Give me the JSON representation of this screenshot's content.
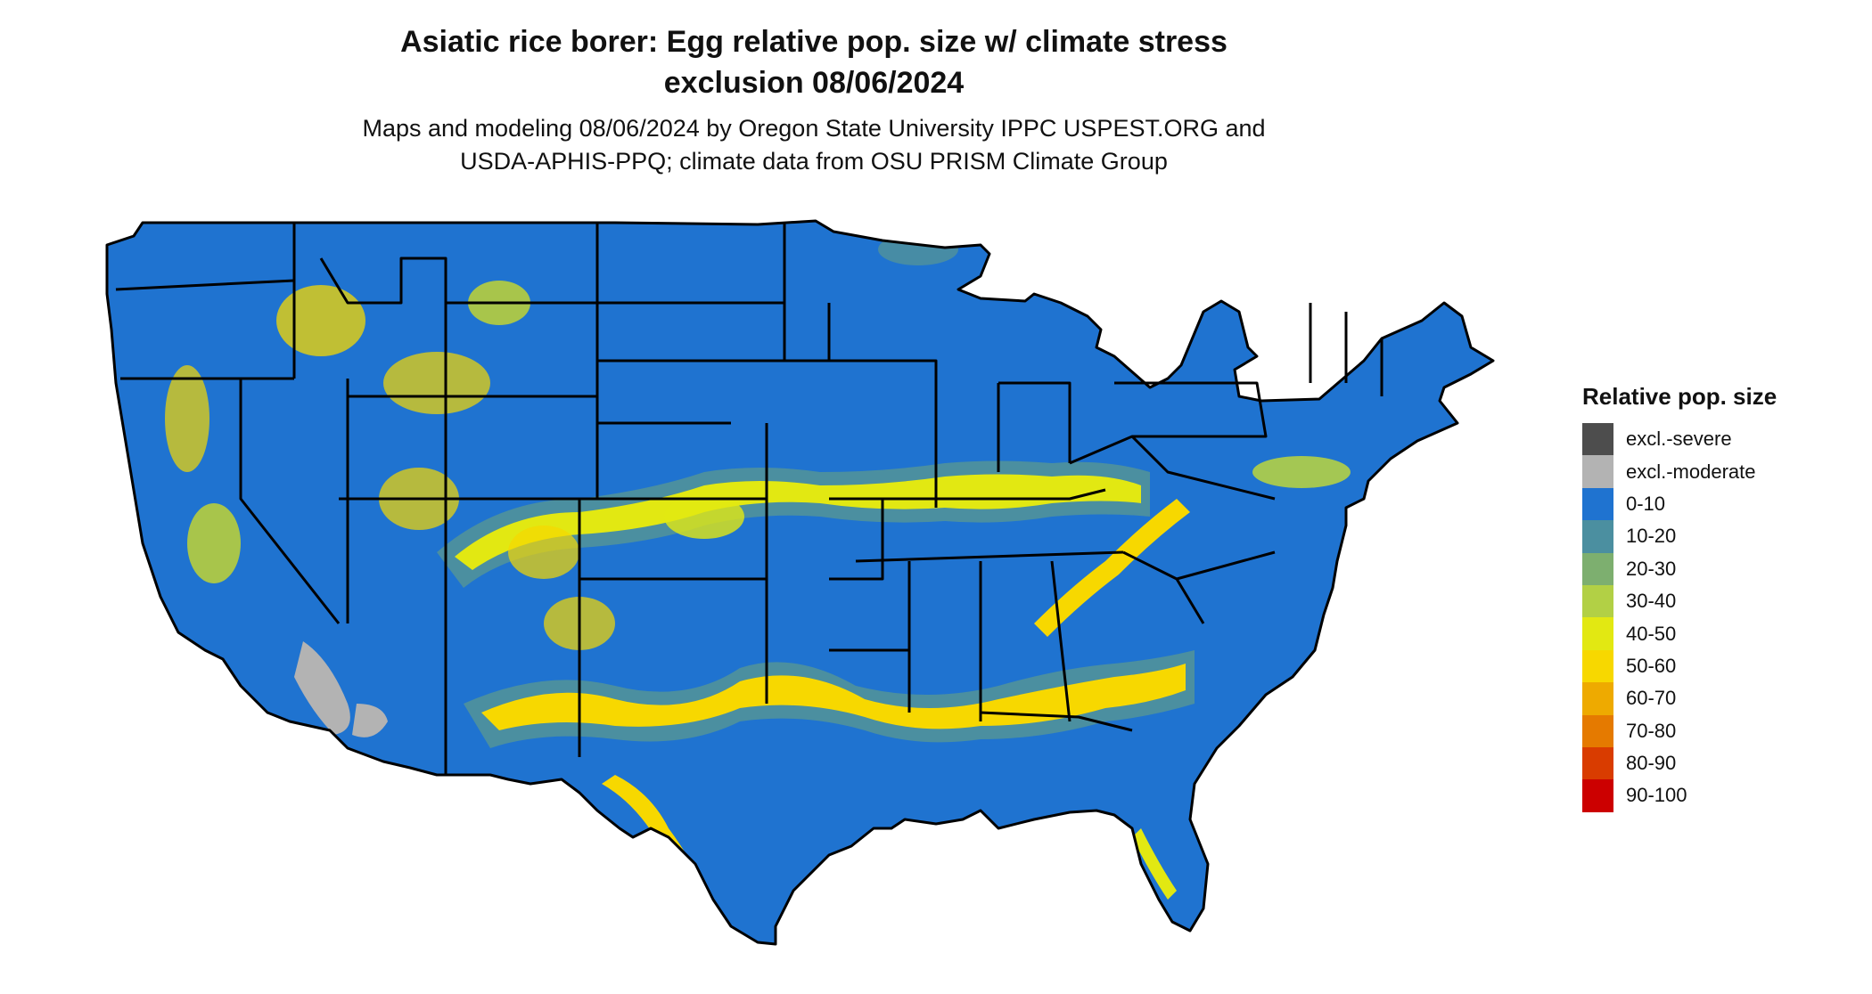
{
  "title": {
    "line1": "Asiatic rice borer: Egg relative pop. size w/ climate stress",
    "line2": "exclusion 08/06/2024"
  },
  "subtitle": {
    "line1": "Maps and modeling 08/06/2024 by Oregon State University IPPC USPEST.ORG and",
    "line2": "USDA-APHIS-PPQ; climate data from OSU PRISM Climate Group"
  },
  "map": {
    "region": "Contiguous United States",
    "ocean_color": "#ffffff",
    "base_color": "#1f73d0",
    "border_color": "#000000"
  },
  "legend": {
    "title": "Relative pop. size",
    "items": [
      {
        "label": "excl.-severe",
        "color": "#4d4d4d"
      },
      {
        "label": "excl.-moderate",
        "color": "#b3b3b3"
      },
      {
        "label": "0-10",
        "color": "#1f73d0"
      },
      {
        "label": "10-20",
        "color": "#4b8fa0"
      },
      {
        "label": "20-30",
        "color": "#7daf6f"
      },
      {
        "label": "30-40",
        "color": "#b2d045"
      },
      {
        "label": "40-50",
        "color": "#e2e812"
      },
      {
        "label": "50-60",
        "color": "#f7d800"
      },
      {
        "label": "60-70",
        "color": "#eeaa00"
      },
      {
        "label": "70-80",
        "color": "#e57a00"
      },
      {
        "label": "80-90",
        "color": "#d93c00"
      },
      {
        "label": "90-100",
        "color": "#cc0000"
      }
    ]
  }
}
